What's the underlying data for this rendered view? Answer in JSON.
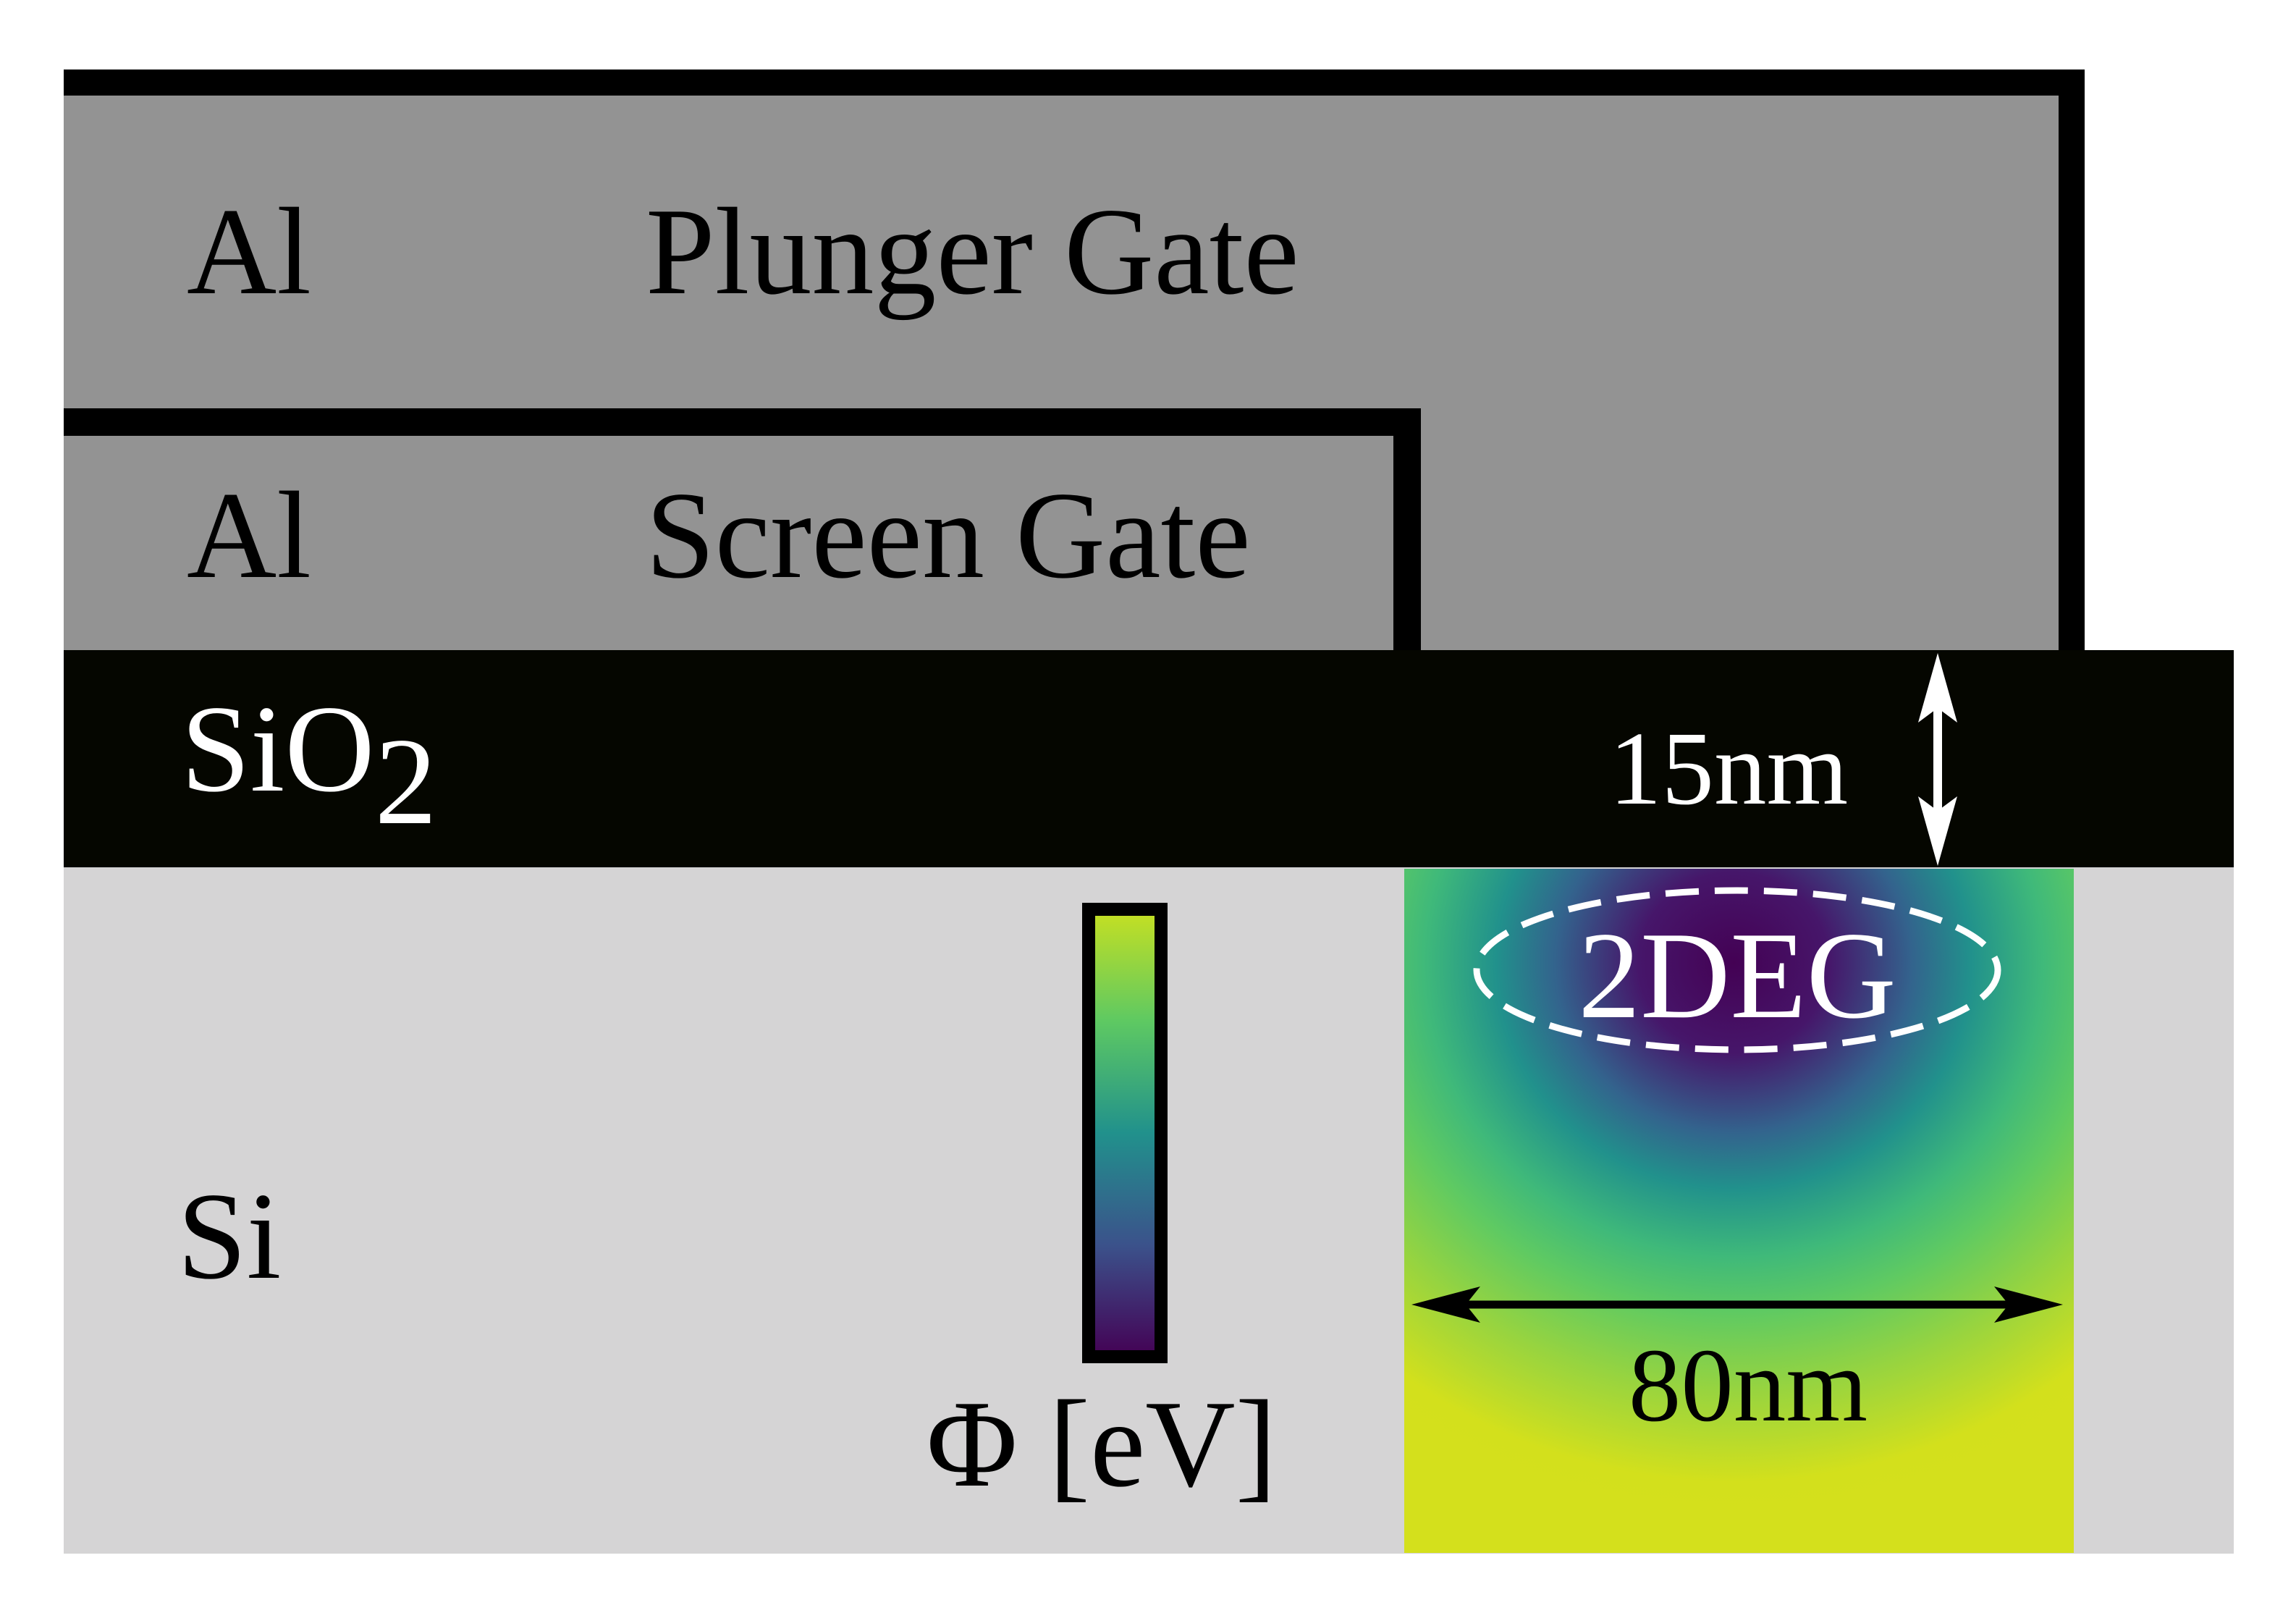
{
  "layers": {
    "plunger_gate": {
      "material": "Al",
      "name": "Plunger Gate"
    },
    "screen_gate": {
      "material": "Al",
      "name": "Screen Gate"
    },
    "oxide": {
      "base": "SiO",
      "subscript": "2",
      "thickness": "15nm"
    },
    "substrate": {
      "material": "Si"
    }
  },
  "potential_map": {
    "region_label": "2DEG",
    "width": "80nm",
    "colorbar_label": "Φ [eV]"
  },
  "colors": {
    "gate": "#939393",
    "gate_outline": "#000000",
    "oxide": "#050600",
    "substrate": "#d5d4d5",
    "viridis_low": "#440154",
    "viridis_mid": "#21918c",
    "viridis_high": "#fde725",
    "annotation_light": "#ffffff",
    "annotation_dark": "#000000"
  }
}
